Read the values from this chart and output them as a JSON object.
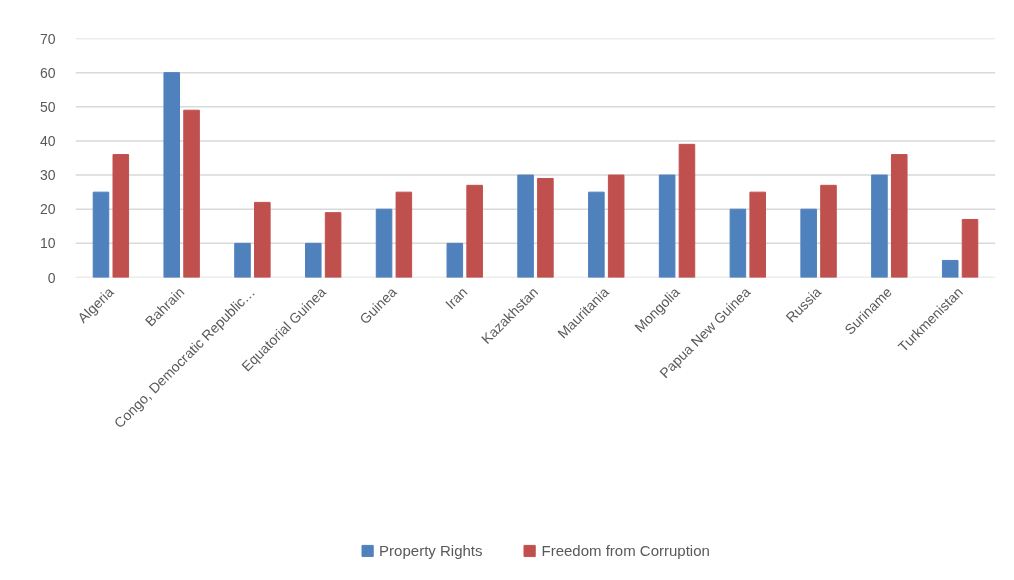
{
  "chart_data": {
    "type": "bar",
    "categories": [
      "Algeria",
      "Bahrain",
      "Congo, Democratic Republic…",
      "Equatorial Guinea",
      "Guinea",
      "Iran",
      "Kazakhstan",
      "Mauritania",
      "Mongolia",
      "Papua New Guinea",
      "Russia",
      "Suriname",
      "Turkmenistan"
    ],
    "series": [
      {
        "name": "Property Rights",
        "color": "#4f81bd",
        "values": [
          25,
          60,
          10,
          10,
          20,
          10,
          30,
          25,
          30,
          20,
          20,
          30,
          5
        ]
      },
      {
        "name": "Freedom from Corruption",
        "color": "#c0504d",
        "values": [
          36,
          49,
          22,
          19,
          25,
          27,
          29,
          30,
          39,
          25,
          27,
          36,
          17
        ]
      }
    ],
    "ylim": [
      0,
      70
    ],
    "yticks": [
      0,
      10,
      20,
      30,
      40,
      50,
      60,
      70
    ],
    "grid": "y",
    "legend": "bottom"
  }
}
